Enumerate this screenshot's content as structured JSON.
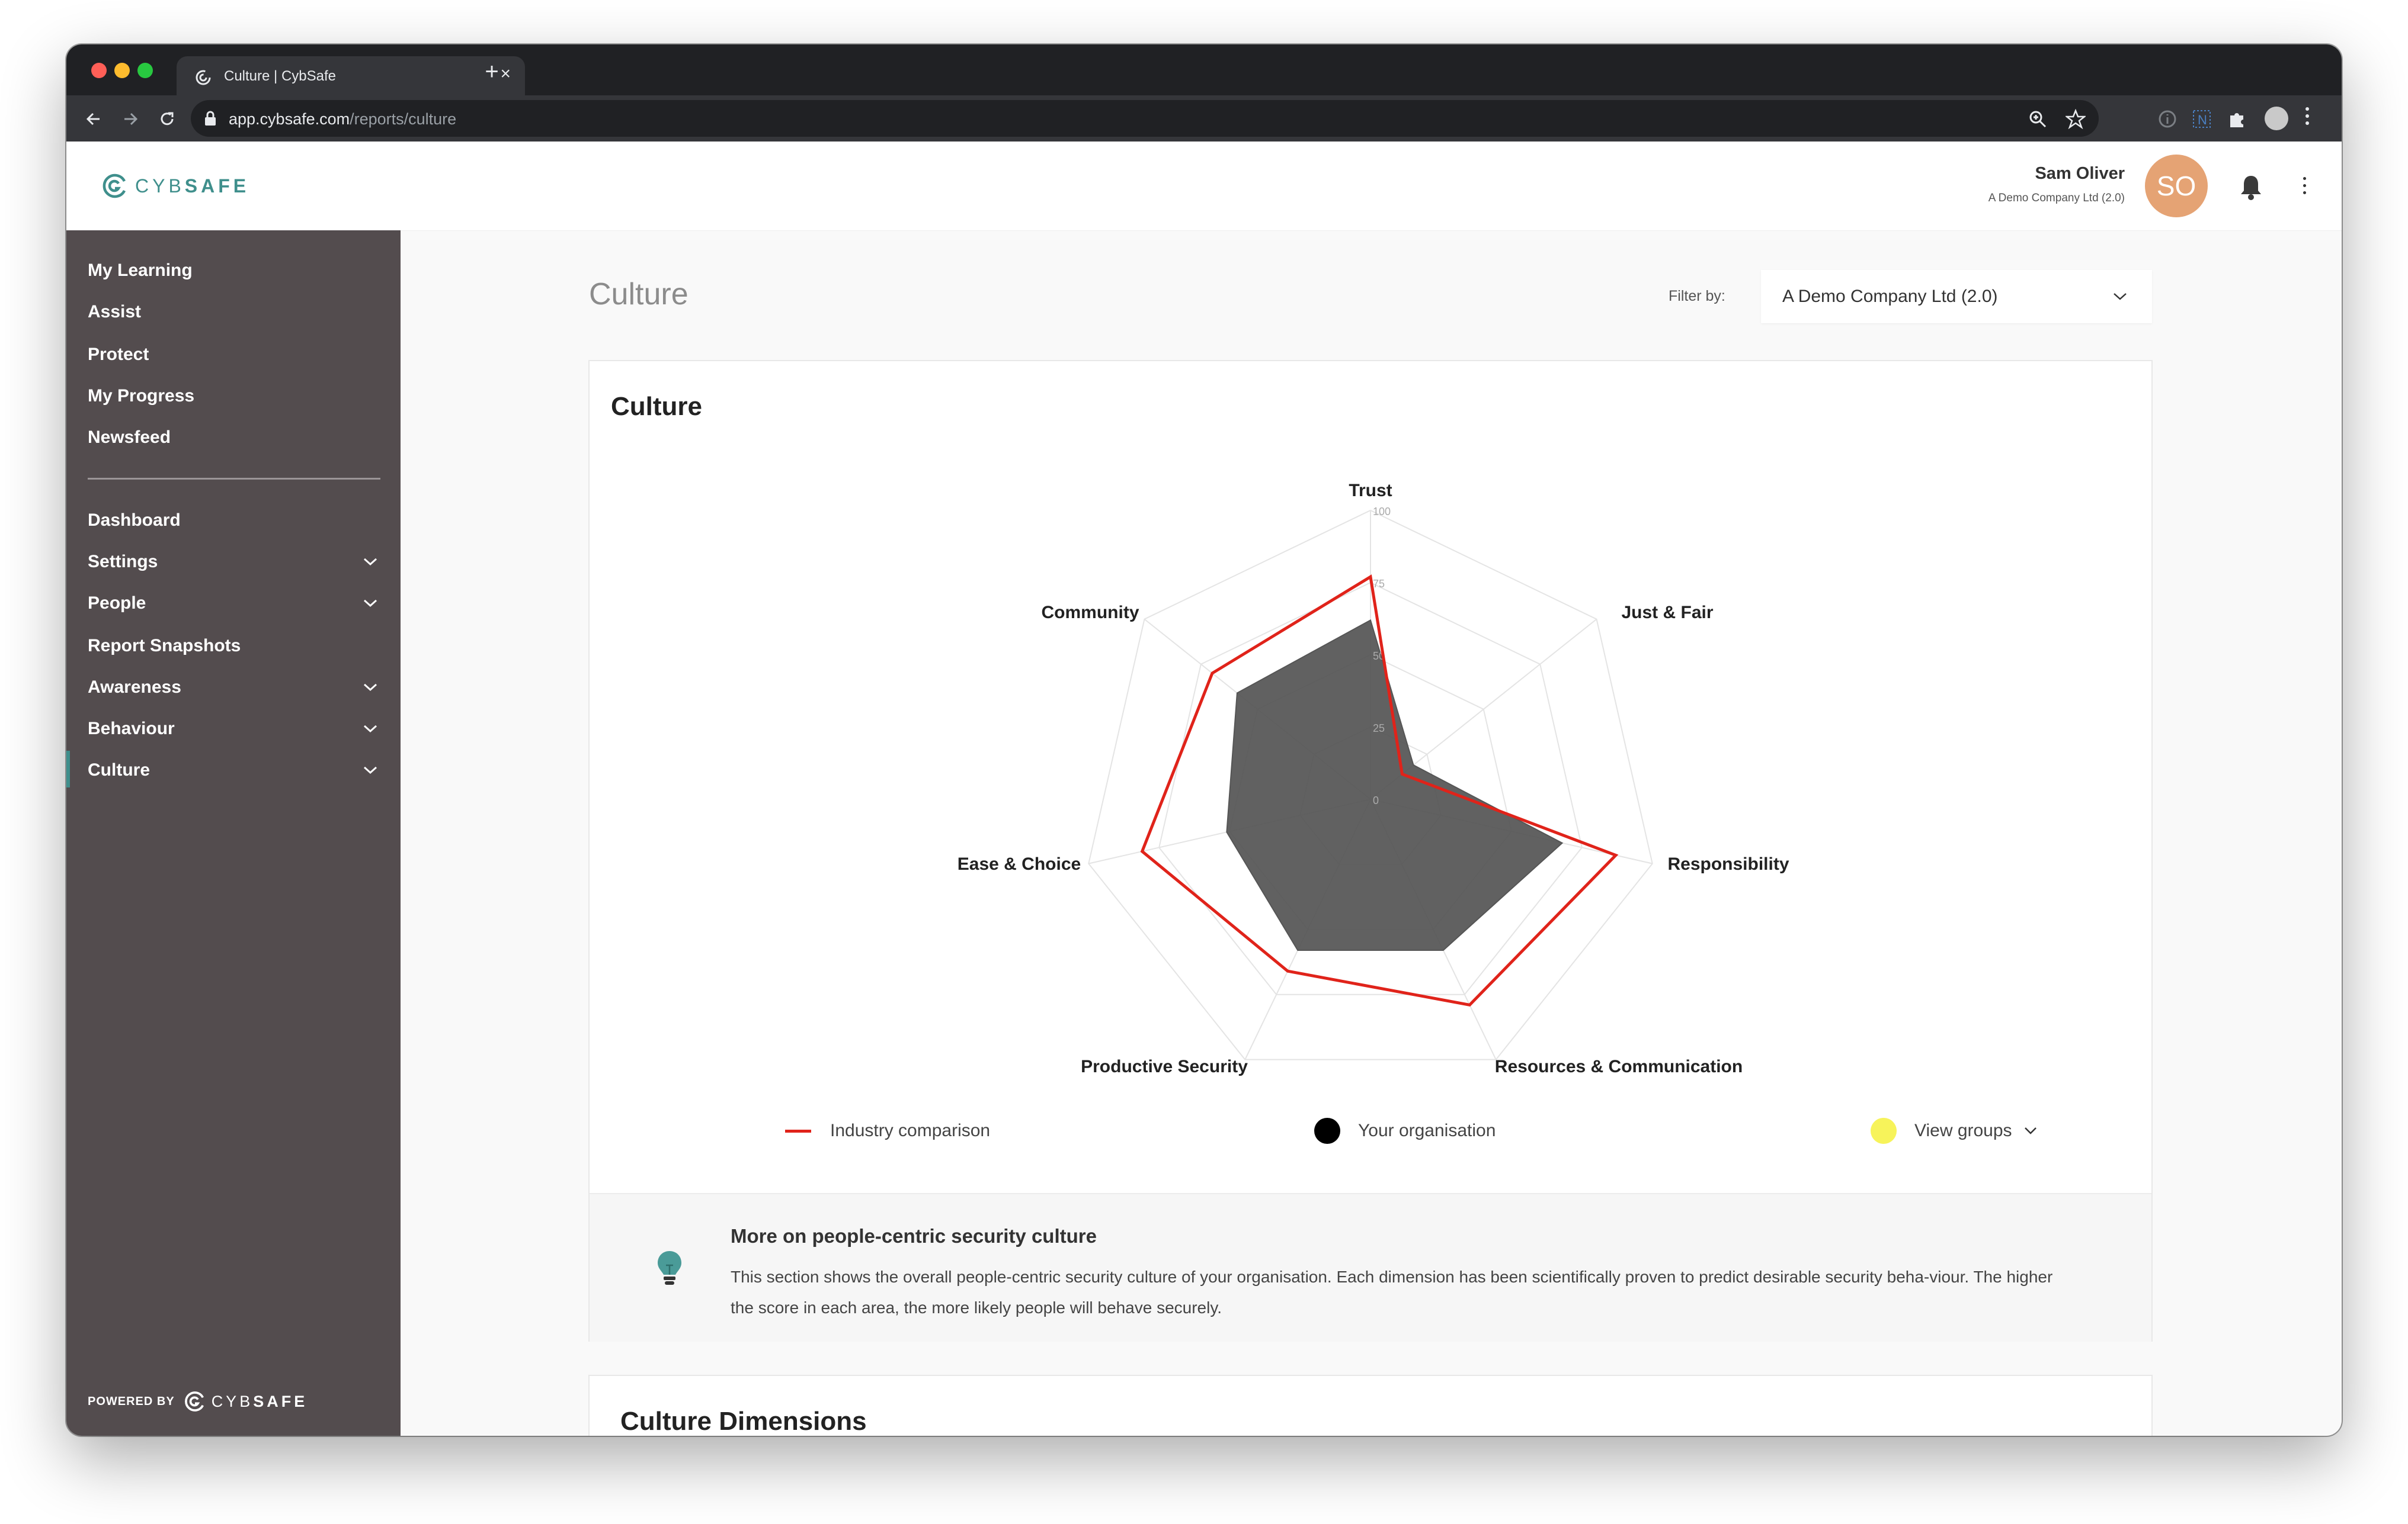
{
  "browser": {
    "tab_title": "Culture | CybSafe",
    "url_host": "app.cybsafe.com",
    "url_path": "/reports/culture"
  },
  "header": {
    "logo_text_light": "CYB",
    "logo_text_bold": "SAFE",
    "user_name": "Sam Oliver",
    "user_org": "A Demo Company Ltd (2.0)",
    "avatar_initials": "SO",
    "avatar_color": "#e5a374"
  },
  "sidebar": {
    "primary_items": [
      {
        "label": "My Learning"
      },
      {
        "label": "Assist"
      },
      {
        "label": "Protect"
      },
      {
        "label": "My Progress"
      },
      {
        "label": "Newsfeed"
      }
    ],
    "admin_items": [
      {
        "label": "Dashboard",
        "expandable": false
      },
      {
        "label": "Settings",
        "expandable": true
      },
      {
        "label": "People",
        "expandable": true
      },
      {
        "label": "Report Snapshots",
        "expandable": false
      },
      {
        "label": "Awareness",
        "expandable": true
      },
      {
        "label": "Behaviour",
        "expandable": true
      },
      {
        "label": "Culture",
        "expandable": true,
        "active": true
      }
    ],
    "powered_by": "POWERED BY",
    "powered_logo_light": "CYB",
    "powered_logo_bold": "SAFE",
    "background": "#534c4e",
    "accent": "#3f8f8c"
  },
  "main": {
    "page_title": "Culture",
    "filter_label": "Filter by:",
    "filter_value": "A Demo Company Ltd (2.0)",
    "card_title": "Culture",
    "legend": {
      "industry": "Industry comparison",
      "organisation": "Your organisation",
      "groups": "View groups"
    },
    "info_title": "More on people-centric security culture",
    "info_text": "This section shows the overall people-centric security culture of your organisation. Each dimension has been scientifically proven to predict desirable security beha-viour. The higher the score in each area, the more likely people will behave securely.",
    "next_card_title": "Culture Dimensions"
  },
  "chart_data": {
    "type": "radar",
    "categories": [
      "Trust",
      "Just & Fair",
      "Responsibility",
      "Resources & Communication",
      "Productive Security",
      "Ease & Choice",
      "Community"
    ],
    "rlim": [
      0,
      100
    ],
    "ticks": [
      "0",
      "25",
      "50",
      "75",
      "100"
    ],
    "series": [
      {
        "name": "Industry comparison",
        "color": "#e0231a",
        "values": [
          77,
          14,
          87,
          79,
          66,
          81,
          70
        ]
      },
      {
        "name": "Your organisation",
        "color": "#000000",
        "values": [
          62,
          19,
          68,
          58,
          58,
          51,
          59
        ]
      }
    ],
    "groups_color": "#f7f35a"
  }
}
